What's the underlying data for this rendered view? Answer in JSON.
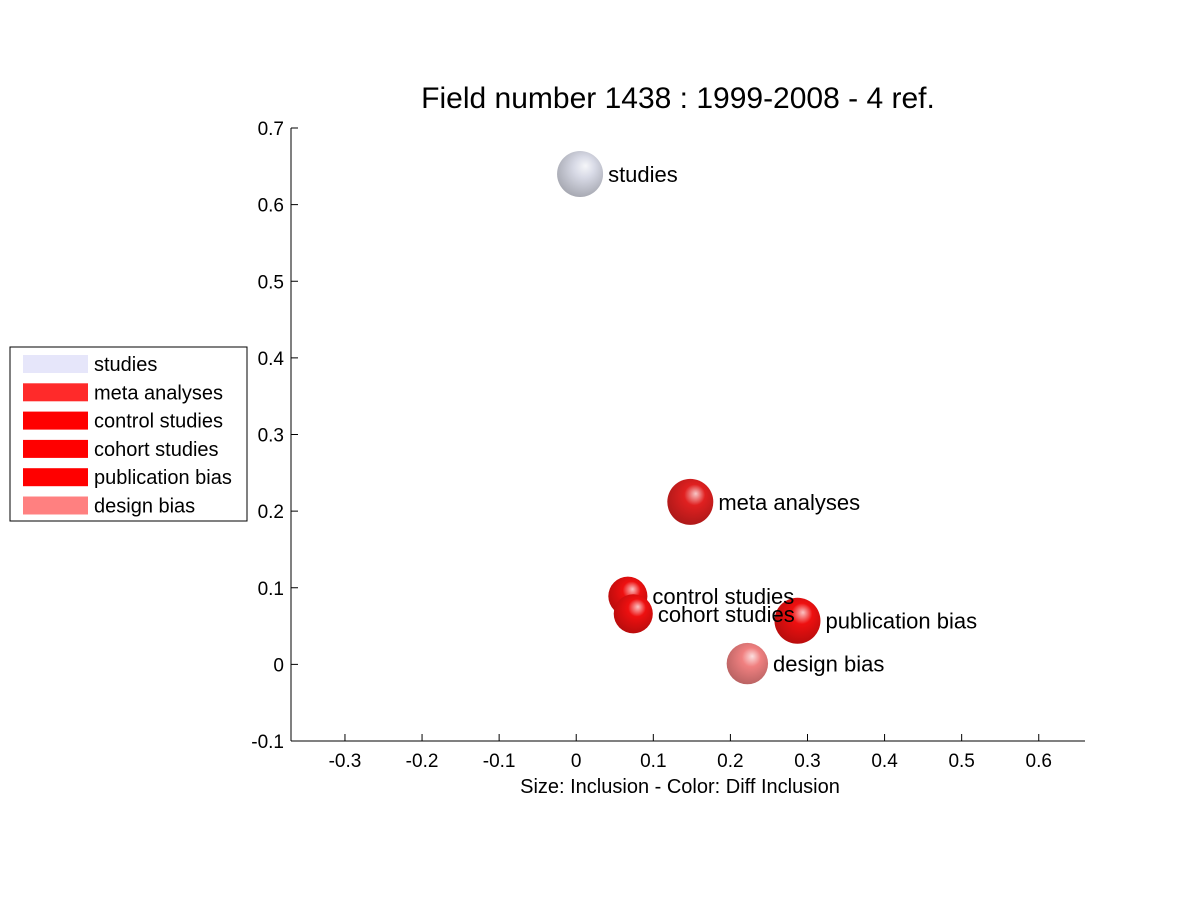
{
  "chart_data": {
    "type": "scatter",
    "title": "Field number 1438 : 1999-2008  - 4 ref.",
    "xlabel": "Size: Inclusion - Color: Diff Inclusion",
    "ylabel": "",
    "xlim": [
      -0.37,
      0.66
    ],
    "ylim": [
      -0.1,
      0.7
    ],
    "xticks": [
      -0.3,
      -0.2,
      -0.1,
      0,
      0.1,
      0.2,
      0.3,
      0.4,
      0.5,
      0.6
    ],
    "xtick_labels": [
      "-0.3",
      "-0.2",
      "-0.1",
      "0",
      "0.1",
      "0.2",
      "0.3",
      "0.4",
      "0.5",
      "0.6"
    ],
    "yticks": [
      -0.1,
      0,
      0.1,
      0.2,
      0.3,
      0.4,
      0.5,
      0.6,
      0.7
    ],
    "ytick_labels": [
      "-0.1",
      "0",
      "0.1",
      "0.2",
      "0.3",
      "0.4",
      "0.5",
      "0.6",
      "0.7"
    ],
    "grid": false,
    "legend_position": "left-outside",
    "points": [
      {
        "label": "studies",
        "x": 0.005,
        "y": 0.64,
        "color": "#d8dae6",
        "size": 1
      },
      {
        "label": "meta analyses",
        "x": 0.148,
        "y": 0.212,
        "color": "#e02020",
        "size": 1
      },
      {
        "label": "control studies",
        "x": 0.067,
        "y": 0.089,
        "color": "#ee1010",
        "size": 0.85
      },
      {
        "label": "cohort studies",
        "x": 0.074,
        "y": 0.066,
        "color": "#ee1010",
        "size": 0.85
      },
      {
        "label": "publication bias",
        "x": 0.287,
        "y": 0.057,
        "color": "#ee1010",
        "size": 1
      },
      {
        "label": "design bias",
        "x": 0.222,
        "y": 0.001,
        "color": "#f08080",
        "size": 0.9
      }
    ],
    "legend": [
      {
        "label": "studies",
        "color": "#e6e6fa"
      },
      {
        "label": "meta analyses",
        "color": "#ff2a2a"
      },
      {
        "label": "control studies",
        "color": "#ff0000"
      },
      {
        "label": "cohort studies",
        "color": "#ff0000"
      },
      {
        "label": "publication bias",
        "color": "#ff0000"
      },
      {
        "label": "design bias",
        "color": "#ff8080"
      }
    ]
  }
}
